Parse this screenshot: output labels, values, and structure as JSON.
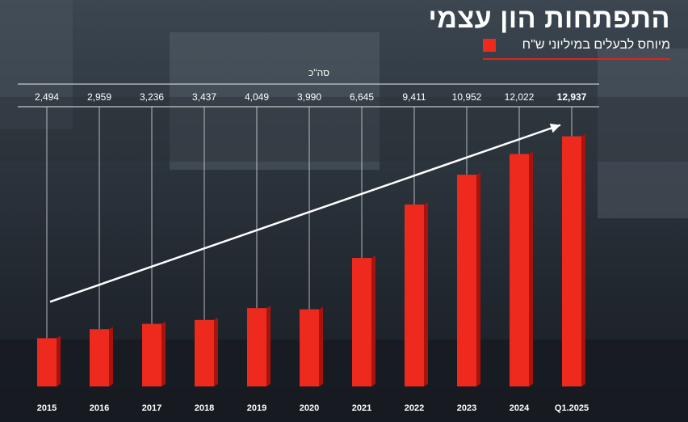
{
  "header": {
    "title": "התפתחות הון עצמי",
    "subtitle": "מיוחס לבעלים במיליוני ש\"ח"
  },
  "colors": {
    "bar": "#ee2a1f",
    "bar_side": "#a8140d",
    "text_light": "#ffffff"
  },
  "chart_data": {
    "type": "bar",
    "title": "התפתחות הון עצמי",
    "subtitle": "מיוחס לבעלים במיליוני ש\"ח",
    "total_label": "סה\"כ",
    "categories": [
      "2015",
      "2016",
      "2017",
      "2018",
      "2019",
      "2020",
      "2021",
      "2022",
      "2023",
      "2024",
      "Q1.2025"
    ],
    "values": [
      2494,
      2959,
      3236,
      3437,
      4049,
      3990,
      6645,
      9411,
      10952,
      12022,
      12937
    ],
    "value_labels": [
      "2,494",
      "2,959",
      "3,236",
      "3,437",
      "4,049",
      "3,990",
      "6,645",
      "9,411",
      "10,952",
      "12,022",
      "12,937"
    ],
    "series": [
      {
        "values": [
          2494,
          2959,
          3236,
          3437,
          4049,
          3990,
          6645,
          9411,
          10952,
          12022,
          12937
        ]
      }
    ],
    "trend_arrow": true,
    "grid": false,
    "ylim": [
      0,
      14000
    ]
  }
}
